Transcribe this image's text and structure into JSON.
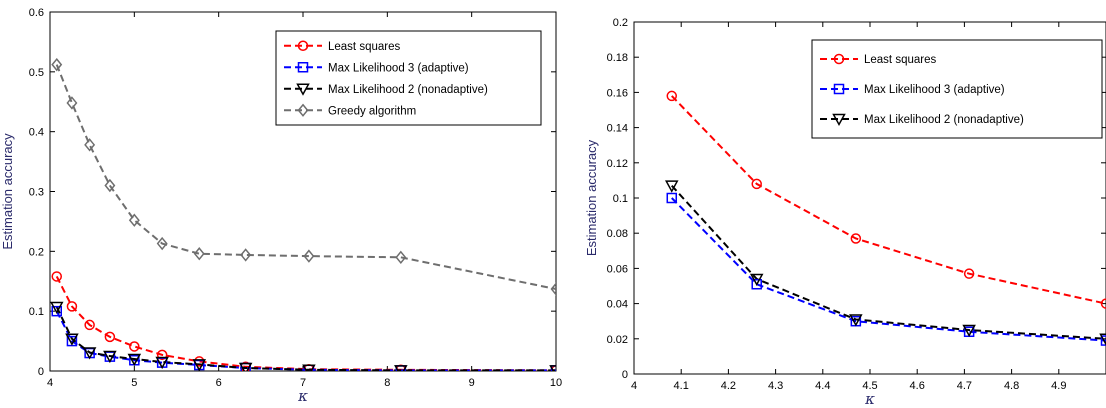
{
  "chart_data": [
    {
      "type": "line",
      "title": "",
      "xlabel": "κ",
      "ylabel": "Estimation accuracy",
      "xlim": [
        4,
        10
      ],
      "ylim": [
        0,
        0.6
      ],
      "xticks": [
        4,
        5,
        6,
        7,
        8,
        9,
        10
      ],
      "yticks": [
        0,
        0.1,
        0.2,
        0.3,
        0.4,
        0.5,
        0.6
      ],
      "grid": false,
      "legend_position": "top-right",
      "series": [
        {
          "name": "Least squares",
          "color": "#ff0000",
          "marker": "circle",
          "x": [
            4.08,
            4.26,
            4.47,
            4.71,
            5.0,
            5.33,
            5.77,
            6.32,
            7.07,
            8.16,
            10.0
          ],
          "y": [
            0.158,
            0.108,
            0.077,
            0.057,
            0.041,
            0.027,
            0.016,
            0.007,
            0.003,
            0.002,
            0.001
          ]
        },
        {
          "name": "Max Likelihood 3 (adaptive)",
          "color": "#0000ff",
          "marker": "square",
          "x": [
            4.08,
            4.26,
            4.47,
            4.71,
            5.0,
            5.33,
            5.77,
            6.32,
            7.07,
            8.16,
            10.0
          ],
          "y": [
            0.1,
            0.05,
            0.03,
            0.024,
            0.018,
            0.014,
            0.01,
            0.005,
            0.002,
            0.001,
            0.001
          ]
        },
        {
          "name": "Max Likelihood 2 (nonadaptive)",
          "color": "#000000",
          "marker": "triangle-down",
          "x": [
            4.08,
            4.26,
            4.47,
            4.71,
            5.0,
            5.33,
            5.77,
            6.32,
            7.07,
            8.16,
            10.0
          ],
          "y": [
            0.107,
            0.054,
            0.031,
            0.025,
            0.02,
            0.015,
            0.011,
            0.005,
            0.002,
            0.001,
            0.001
          ]
        },
        {
          "name": "Greedy algorithm",
          "color": "#6e6e6e",
          "marker": "diamond",
          "x": [
            4.08,
            4.26,
            4.47,
            4.71,
            5.0,
            5.33,
            5.77,
            6.32,
            7.07,
            8.16,
            10.0
          ],
          "y": [
            0.512,
            0.448,
            0.378,
            0.31,
            0.252,
            0.213,
            0.196,
            0.194,
            0.192,
            0.19,
            0.137
          ]
        }
      ]
    },
    {
      "type": "line",
      "title": "",
      "xlabel": "κ",
      "ylabel": "Estimation accuracy",
      "xlim": [
        4,
        5
      ],
      "ylim": [
        0,
        0.2
      ],
      "xticks": [
        4,
        4.1,
        4.2,
        4.3,
        4.4,
        4.5,
        4.6,
        4.7,
        4.8,
        4.9
      ],
      "yticks": [
        0,
        0.02,
        0.04,
        0.06,
        0.08,
        0.1,
        0.12,
        0.14,
        0.16,
        0.18,
        0.2
      ],
      "grid": false,
      "legend_position": "top-right",
      "series": [
        {
          "name": "Least squares",
          "color": "#ff0000",
          "marker": "circle",
          "x": [
            4.08,
            4.26,
            4.47,
            4.71,
            5.0
          ],
          "y": [
            0.158,
            0.108,
            0.077,
            0.057,
            0.04
          ]
        },
        {
          "name": "Max Likelihood 3 (adaptive)",
          "color": "#0000ff",
          "marker": "square",
          "x": [
            4.08,
            4.26,
            4.47,
            4.71,
            5.0
          ],
          "y": [
            0.1,
            0.051,
            0.03,
            0.024,
            0.019
          ]
        },
        {
          "name": "Max Likelihood 2 (nonadaptive)",
          "color": "#000000",
          "marker": "triangle-down",
          "x": [
            4.08,
            4.26,
            4.47,
            4.71,
            5.0
          ],
          "y": [
            0.107,
            0.054,
            0.031,
            0.025,
            0.02
          ]
        }
      ]
    }
  ]
}
